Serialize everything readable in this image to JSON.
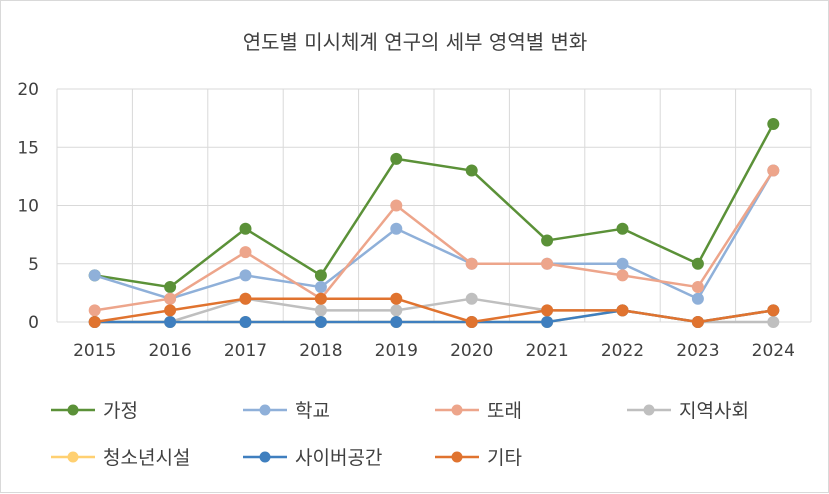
{
  "chart_data": {
    "type": "line",
    "title": "연도별 미시체계 연구의 세부 영역별 변화",
    "xlabel": "",
    "ylabel": "",
    "x": [
      "2015",
      "2016",
      "2017",
      "2018",
      "2019",
      "2020",
      "2021",
      "2022",
      "2023",
      "2024"
    ],
    "ylim": [
      0,
      20
    ],
    "yticks": [
      0,
      5,
      10,
      15,
      20
    ],
    "grid": true,
    "legend_position": "bottom",
    "series": [
      {
        "name": "가정",
        "color": "#5b9138",
        "values": [
          4,
          3,
          8,
          4,
          14,
          13,
          7,
          8,
          5,
          17
        ]
      },
      {
        "name": "학교",
        "color": "#8fb0d9",
        "values": [
          4,
          2,
          4,
          3,
          8,
          5,
          5,
          5,
          2,
          13
        ]
      },
      {
        "name": "또래",
        "color": "#eda58b",
        "values": [
          1,
          2,
          6,
          2,
          10,
          5,
          5,
          4,
          3,
          13
        ]
      },
      {
        "name": "지역사회",
        "color": "#bfbfbf",
        "values": [
          0,
          0,
          2,
          1,
          1,
          2,
          1,
          1,
          0,
          0
        ]
      },
      {
        "name": "청소년시설",
        "color": "#ffd071",
        "values": [
          0,
          0,
          0,
          0,
          0,
          0,
          0,
          1,
          0,
          1
        ]
      },
      {
        "name": "사이버공간",
        "color": "#3f7fbf",
        "values": [
          0,
          0,
          0,
          0,
          0,
          0,
          0,
          1,
          0,
          1
        ]
      },
      {
        "name": "기타",
        "color": "#e0732f",
        "values": [
          0,
          1,
          2,
          2,
          2,
          0,
          1,
          1,
          0,
          1
        ]
      }
    ]
  }
}
